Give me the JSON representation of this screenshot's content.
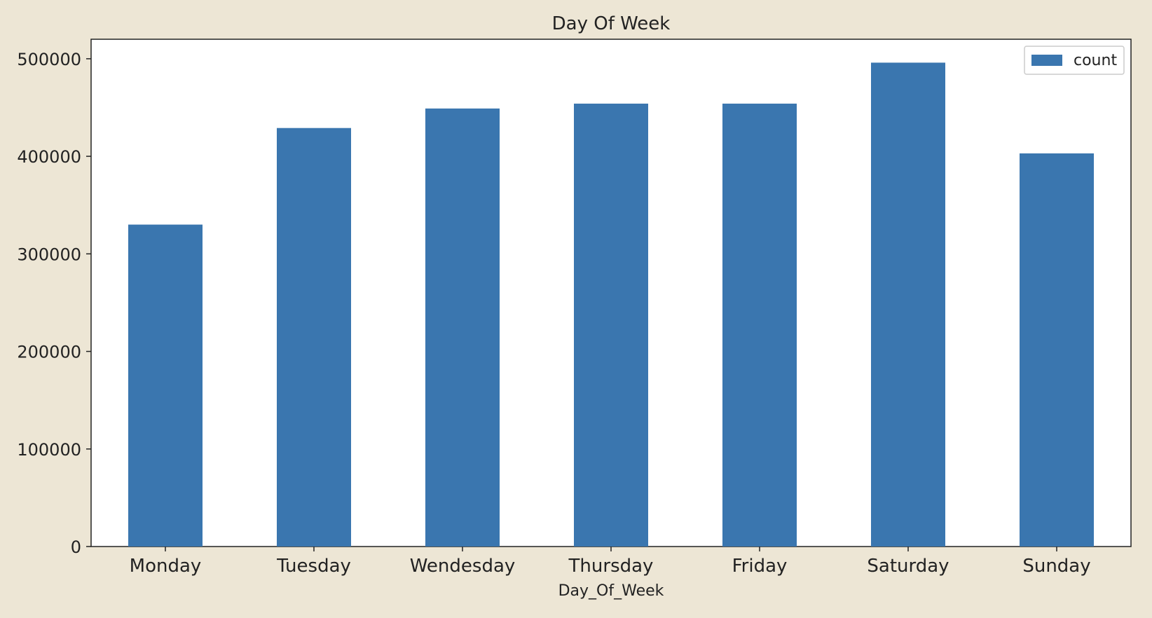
{
  "chart_data": {
    "type": "bar",
    "title": "Day Of Week",
    "xlabel": "Day_Of_Week",
    "ylabel": "",
    "categories": [
      "Monday",
      "Tuesday",
      "Wendesday",
      "Thursday",
      "Friday",
      "Saturday",
      "Sunday"
    ],
    "series": [
      {
        "name": "count",
        "values": [
          330000,
          429000,
          449000,
          454000,
          454000,
          496000,
          403000
        ]
      }
    ],
    "ylim": [
      0,
      520000
    ],
    "yticks": [
      0,
      100000,
      200000,
      300000,
      400000,
      500000
    ],
    "ytick_labels": [
      "0",
      "100000",
      "200000",
      "300000",
      "400000",
      "500000"
    ],
    "grid": false,
    "legend_position": "top-right",
    "colors": {
      "bar": "#3a76af",
      "background": "#ede6d5",
      "plot_background": "#ffffff",
      "axis": "#222222"
    }
  }
}
